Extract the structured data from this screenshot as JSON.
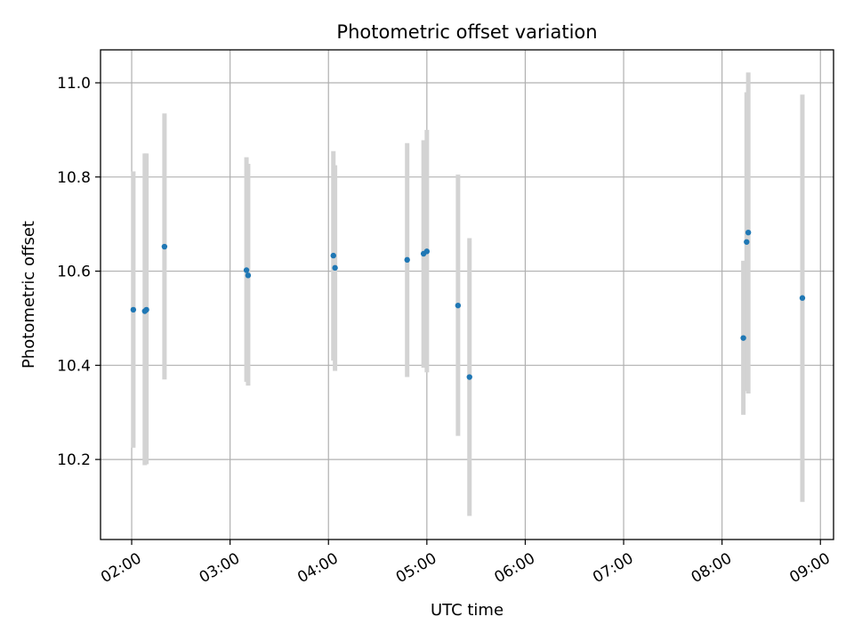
{
  "chart_data": {
    "type": "scatter",
    "title": "Photometric offset variation",
    "xlabel": "UTC time",
    "ylabel": "Photometric offset",
    "grid": true,
    "legend": "none",
    "xlim": [
      "01:41",
      "09:08"
    ],
    "ylim": [
      10.03,
      11.07
    ],
    "x_ticks": [
      "02:00",
      "03:00",
      "04:00",
      "05:00",
      "06:00",
      "07:00",
      "08:00",
      "09:00"
    ],
    "y_ticks": [
      "10.2",
      "10.4",
      "10.6",
      "10.8",
      "11.0"
    ],
    "colors": {
      "points": "#1f77b4",
      "errorbars": "#d3d3d3",
      "grid": "#b0b0b0"
    },
    "series": [
      {
        "points": [
          {
            "x": "02:01",
            "y": 10.518,
            "ylow": 10.225,
            "yhigh": 10.812
          },
          {
            "x": "02:08",
            "y": 10.515,
            "ylow": 10.188,
            "yhigh": 10.85
          },
          {
            "x": "02:09",
            "y": 10.518,
            "ylow": 10.19,
            "yhigh": 10.85
          },
          {
            "x": "02:20",
            "y": 10.652,
            "ylow": 10.37,
            "yhigh": 10.935
          },
          {
            "x": "03:10",
            "y": 10.602,
            "ylow": 10.365,
            "yhigh": 10.842
          },
          {
            "x": "03:11",
            "y": 10.591,
            "ylow": 10.357,
            "yhigh": 10.828
          },
          {
            "x": "04:03",
            "y": 10.633,
            "ylow": 10.41,
            "yhigh": 10.855
          },
          {
            "x": "04:04",
            "y": 10.607,
            "ylow": 10.388,
            "yhigh": 10.825
          },
          {
            "x": "04:48",
            "y": 10.624,
            "ylow": 10.375,
            "yhigh": 10.872
          },
          {
            "x": "04:58",
            "y": 10.637,
            "ylow": 10.395,
            "yhigh": 10.878
          },
          {
            "x": "05:00",
            "y": 10.642,
            "ylow": 10.385,
            "yhigh": 10.9
          },
          {
            "x": "05:19",
            "y": 10.527,
            "ylow": 10.25,
            "yhigh": 10.805
          },
          {
            "x": "05:26",
            "y": 10.375,
            "ylow": 10.08,
            "yhigh": 10.67
          },
          {
            "x": "08:13",
            "y": 10.458,
            "ylow": 10.295,
            "yhigh": 10.622
          },
          {
            "x": "08:15",
            "y": 10.662,
            "ylow": 10.345,
            "yhigh": 10.98
          },
          {
            "x": "08:16",
            "y": 10.682,
            "ylow": 10.34,
            "yhigh": 11.022
          },
          {
            "x": "08:49",
            "y": 10.543,
            "ylow": 10.11,
            "yhigh": 10.975
          }
        ]
      }
    ]
  }
}
